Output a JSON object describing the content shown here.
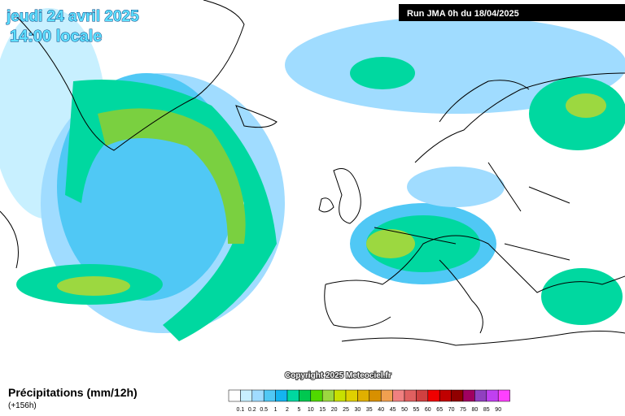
{
  "header": {
    "date": "jeudi 24 avril 2025",
    "time": "14:00 locale",
    "run": "Run JMA 0h du 18/04/2025"
  },
  "copyright": "Copyright 2025 Meteociel.fr",
  "legend": {
    "title": "Précipitations (mm/12h)",
    "lead": "(+156h)",
    "labels": [
      "0.1",
      "0.2",
      "0.5",
      "1",
      "2",
      "5",
      "10",
      "15",
      "20",
      "25",
      "30",
      "35",
      "40",
      "45",
      "50",
      "55",
      "60",
      "65",
      "70",
      "75",
      "80",
      "85",
      "90"
    ]
  }
}
